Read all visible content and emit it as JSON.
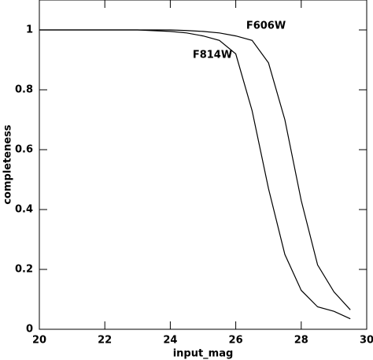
{
  "chart_data": {
    "type": "line",
    "xlabel": "input_mag",
    "ylabel": "completeness",
    "x": [
      20,
      21,
      22,
      23,
      24,
      24.5,
      25,
      25.5,
      26,
      26.5,
      27,
      27.5,
      28,
      28.5,
      29,
      29.5
    ],
    "series": [
      {
        "name": "F606W",
        "color": "#000000",
        "values": [
          1.0,
          1.0,
          1.0,
          1.0,
          1.0,
          0.998,
          0.995,
          0.99,
          0.98,
          0.965,
          0.89,
          0.7,
          0.43,
          0.215,
          0.125,
          0.065
        ]
      },
      {
        "name": "F814W",
        "color": "#000000",
        "values": [
          1.0,
          1.0,
          1.0,
          1.0,
          0.995,
          0.99,
          0.98,
          0.965,
          0.92,
          0.73,
          0.47,
          0.25,
          0.13,
          0.075,
          0.06,
          0.035
        ]
      }
    ],
    "xlim": [
      20,
      30
    ],
    "ylim": [
      0,
      1.1
    ],
    "xticks": [
      20,
      22,
      24,
      26,
      28,
      30
    ],
    "yticks": [
      0,
      0.2,
      0.4,
      0.6,
      0.8,
      1
    ]
  }
}
